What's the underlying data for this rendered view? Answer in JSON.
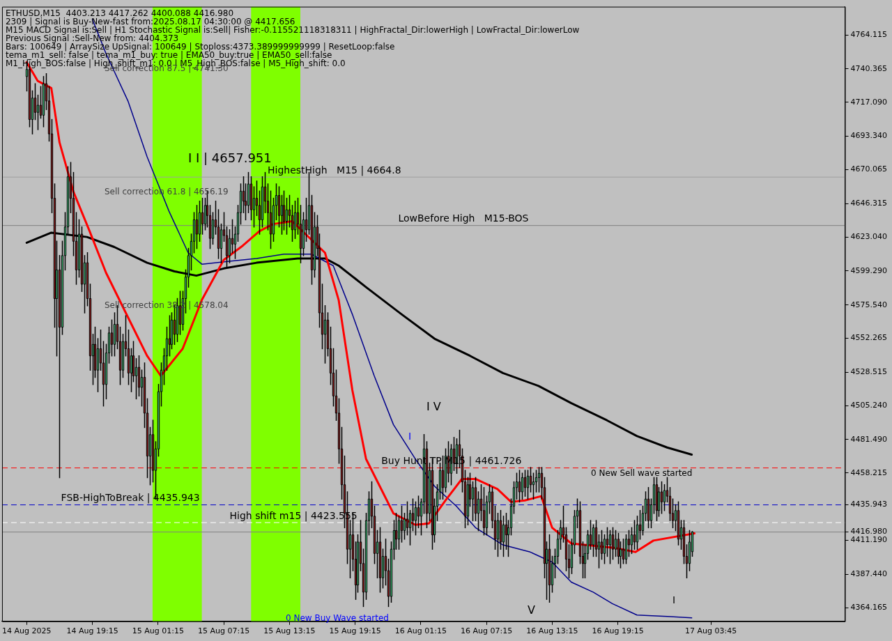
{
  "chart_data": {
    "type": "candlestick",
    "x": [
      "2025-08-14T13:15",
      "2025-08-14T13:30",
      "2025-08-14T13:45",
      "2025-08-14T14:00",
      "2025-08-14T14:15",
      "2025-08-14T14:30",
      "2025-08-14T14:45",
      "2025-08-14T15:00",
      "2025-08-14T15:15",
      "2025-08-14T15:30",
      "2025-08-14T15:45",
      "2025-08-14T16:00",
      "2025-08-14T16:15",
      "2025-08-14T16:30",
      "2025-08-14T16:45",
      "2025-08-14T17:00",
      "2025-08-14T17:15",
      "2025-08-14T17:30",
      "2025-08-14T17:45",
      "2025-08-14T18:00",
      "2025-08-14T18:15",
      "2025-08-14T18:30",
      "2025-08-14T18:45",
      "2025-08-14T19:00",
      "2025-08-14T19:15",
      "2025-08-14T19:30",
      "2025-08-14T19:45",
      "2025-08-14T20:00",
      "2025-08-14T20:15",
      "2025-08-14T20:30",
      "2025-08-14T20:45",
      "2025-08-14T21:00",
      "2025-08-14T21:15",
      "2025-08-14T21:30",
      "2025-08-14T21:45",
      "2025-08-14T22:00",
      "2025-08-14T22:15",
      "2025-08-14T22:30",
      "2025-08-14T22:45",
      "2025-08-14T23:00",
      "2025-08-14T23:15",
      "2025-08-14T23:30",
      "2025-08-14T23:45",
      "2025-08-15T00:00",
      "2025-08-15T00:15",
      "2025-08-15T00:30",
      "2025-08-15T00:45",
      "2025-08-15T01:00",
      "2025-08-15T01:15",
      "2025-08-15T01:30",
      "2025-08-15T01:45",
      "2025-08-15T02:00",
      "2025-08-15T02:15",
      "2025-08-15T02:30",
      "2025-08-15T02:45",
      "2025-08-15T03:00",
      "2025-08-15T03:15",
      "2025-08-15T03:30",
      "2025-08-15T03:45",
      "2025-08-15T04:00",
      "2025-08-15T04:15",
      "2025-08-15T04:30",
      "2025-08-15T04:45",
      "2025-08-15T05:00",
      "2025-08-15T05:15",
      "2025-08-15T05:30",
      "2025-08-15T05:45",
      "2025-08-15T06:00",
      "2025-08-15T06:15",
      "2025-08-15T06:30",
      "2025-08-15T06:45",
      "2025-08-15T07:00",
      "2025-08-15T07:15",
      "2025-08-15T07:30",
      "2025-08-15T07:45",
      "2025-08-15T08:00",
      "2025-08-15T08:15",
      "2025-08-15T08:30",
      "2025-08-15T08:45",
      "2025-08-15T09:00",
      "2025-08-15T09:15",
      "2025-08-15T09:30",
      "2025-08-15T09:45",
      "2025-08-15T10:00",
      "2025-08-15T10:15",
      "2025-08-15T10:30",
      "2025-08-15T10:45",
      "2025-08-15T11:00",
      "2025-08-15T11:15",
      "2025-08-15T11:30",
      "2025-08-15T11:45",
      "2025-08-15T12:00",
      "2025-08-15T12:15",
      "2025-08-15T12:30",
      "2025-08-15T12:45",
      "2025-08-15T13:00",
      "2025-08-15T13:15",
      "2025-08-15T13:30",
      "2025-08-15T13:45",
      "2025-08-15T14:00",
      "2025-08-15T14:15",
      "2025-08-15T14:30",
      "2025-08-15T14:45",
      "2025-08-15T15:00",
      "2025-08-15T15:15",
      "2025-08-15T15:30",
      "2025-08-15T15:45",
      "2025-08-15T16:00",
      "2025-08-15T16:15",
      "2025-08-15T16:30",
      "2025-08-15T16:45",
      "2025-08-15T17:00",
      "2025-08-15T17:15",
      "2025-08-15T17:30",
      "2025-08-15T17:45",
      "2025-08-15T18:00",
      "2025-08-15T18:15",
      "2025-08-15T18:30",
      "2025-08-15T18:45",
      "2025-08-15T19:00",
      "2025-08-15T19:15",
      "2025-08-15T19:30",
      "2025-08-15T19:45",
      "2025-08-15T20:00",
      "2025-08-15T20:15",
      "2025-08-15T20:30",
      "2025-08-15T20:45",
      "2025-08-15T21:00",
      "2025-08-15T21:15",
      "2025-08-15T21:30",
      "2025-08-15T21:45",
      "2025-08-15T22:00",
      "2025-08-15T22:15",
      "2025-08-15T22:30",
      "2025-08-15T22:45",
      "2025-08-15T23:00",
      "2025-08-15T23:15",
      "2025-08-15T23:30",
      "2025-08-15T23:45",
      "2025-08-16T00:00",
      "2025-08-16T00:15",
      "2025-08-16T00:30",
      "2025-08-16T00:45",
      "2025-08-16T01:00",
      "2025-08-16T01:15",
      "2025-08-16T01:30",
      "2025-08-16T01:45",
      "2025-08-16T02:00",
      "2025-08-16T02:15",
      "2025-08-16T02:30",
      "2025-08-16T02:45",
      "2025-08-16T03:00",
      "2025-08-16T03:15",
      "2025-08-16T03:30",
      "2025-08-16T03:45",
      "2025-08-16T04:00",
      "2025-08-16T04:15",
      "2025-08-16T04:30",
      "2025-08-16T04:45",
      "2025-08-16T05:00",
      "2025-08-16T05:15",
      "2025-08-16T05:30",
      "2025-08-16T05:45",
      "2025-08-16T06:00",
      "2025-08-16T06:15",
      "2025-08-16T06:30",
      "2025-08-16T06:45",
      "2025-08-16T07:00",
      "2025-08-16T07:15",
      "2025-08-16T07:30",
      "2025-08-16T07:45",
      "2025-08-16T08:00",
      "2025-08-16T08:15",
      "2025-08-16T08:30",
      "2025-08-16T08:45",
      "2025-08-16T09:00",
      "2025-08-16T09:15",
      "2025-08-16T09:30",
      "2025-08-16T09:45",
      "2025-08-16T10:00",
      "2025-08-16T10:15",
      "2025-08-16T10:30",
      "2025-08-16T10:45",
      "2025-08-16T11:00",
      "2025-08-16T11:15",
      "2025-08-16T11:30",
      "2025-08-16T11:45",
      "2025-08-16T12:00",
      "2025-08-16T12:15",
      "2025-08-16T12:30",
      "2025-08-16T12:45",
      "2025-08-16T13:00",
      "2025-08-16T13:15",
      "2025-08-16T13:30",
      "2025-08-16T13:45",
      "2025-08-16T14:00",
      "2025-08-16T14:15",
      "2025-08-16T14:30",
      "2025-08-16T14:45",
      "2025-08-16T15:00",
      "2025-08-16T15:15",
      "2025-08-16T15:30",
      "2025-08-16T15:45",
      "2025-08-16T16:00",
      "2025-08-16T16:15",
      "2025-08-16T16:30",
      "2025-08-16T16:45",
      "2025-08-16T17:00",
      "2025-08-16T17:15",
      "2025-08-16T17:30",
      "2025-08-16T17:45",
      "2025-08-16T18:00",
      "2025-08-16T18:15",
      "2025-08-16T18:30",
      "2025-08-16T18:45",
      "2025-08-16T19:00",
      "2025-08-16T19:15",
      "2025-08-16T19:30",
      "2025-08-16T19:45",
      "2025-08-16T20:00",
      "2025-08-16T20:15",
      "2025-08-16T20:30",
      "2025-08-16T20:45",
      "2025-08-16T21:00",
      "2025-08-16T21:15",
      "2025-08-16T21:30",
      "2025-08-16T21:45",
      "2025-08-16T22:00",
      "2025-08-16T22:15",
      "2025-08-16T22:30",
      "2025-08-16T22:45",
      "2025-08-16T23:00",
      "2025-08-16T23:15",
      "2025-08-16T23:30",
      "2025-08-16T23:45",
      "2025-08-17T00:00",
      "2025-08-17T00:15",
      "2025-08-17T00:30",
      "2025-08-17T00:45",
      "2025-08-17T01:00",
      "2025-08-17T01:15",
      "2025-08-17T01:30",
      "2025-08-17T01:45",
      "2025-08-17T02:00"
    ],
    "ohlc": [
      [
        4735,
        4745,
        4725,
        4740
      ],
      [
        4740,
        4742,
        4700,
        4705
      ],
      [
        4705,
        4725,
        4695,
        4720
      ],
      [
        4720,
        4730,
        4705,
        4710
      ],
      [
        4710,
        4722,
        4698,
        4715
      ],
      [
        4715,
        4728,
        4706,
        4708
      ],
      [
        4708,
        4735,
        4700,
        4730
      ],
      [
        4730,
        4737,
        4712,
        4718
      ],
      [
        4718,
        4728,
        4690,
        4695
      ],
      [
        4695,
        4705,
        4640,
        4650
      ],
      [
        4650,
        4660,
        4560,
        4580
      ],
      [
        4580,
        4620,
        4540,
        4600
      ],
      [
        4600,
        4610,
        4455,
        4560
      ],
      [
        4560,
        4620,
        4555,
        4610
      ],
      [
        4610,
        4640,
        4600,
        4630
      ],
      [
        4630,
        4672,
        4625,
        4665
      ],
      [
        4665,
        4675,
        4640,
        4650
      ],
      [
        4650,
        4668,
        4610,
        4620
      ],
      [
        4620,
        4640,
        4590,
        4600
      ],
      [
        4600,
        4635,
        4595,
        4625
      ],
      [
        4625,
        4630,
        4585,
        4590
      ],
      [
        4590,
        4610,
        4570,
        4605
      ],
      [
        4605,
        4612,
        4575,
        4580
      ],
      [
        4580,
        4590,
        4530,
        4540
      ],
      [
        4540,
        4555,
        4520,
        4548
      ],
      [
        4548,
        4560,
        4525,
        4530
      ],
      [
        4530,
        4552,
        4515,
        4545
      ],
      [
        4545,
        4558,
        4530,
        4535
      ],
      [
        4535,
        4550,
        4505,
        4520
      ],
      [
        4520,
        4548,
        4510,
        4542
      ],
      [
        4542,
        4560,
        4535,
        4556
      ],
      [
        4556,
        4565,
        4540,
        4548
      ],
      [
        4548,
        4570,
        4540,
        4562
      ],
      [
        4562,
        4575,
        4545,
        4550
      ],
      [
        4550,
        4560,
        4520,
        4530
      ],
      [
        4530,
        4555,
        4525,
        4550
      ],
      [
        4550,
        4568,
        4540,
        4545
      ],
      [
        4545,
        4558,
        4520,
        4528
      ],
      [
        4528,
        4545,
        4515,
        4540
      ],
      [
        4540,
        4550,
        4522,
        4526
      ],
      [
        4526,
        4538,
        4510,
        4532
      ],
      [
        4532,
        4540,
        4512,
        4518
      ],
      [
        4518,
        4530,
        4505,
        4525
      ],
      [
        4525,
        4535,
        4490,
        4500
      ],
      [
        4500,
        4510,
        4455,
        4470
      ],
      [
        4470,
        4490,
        4450,
        4485
      ],
      [
        4485,
        4495,
        4452,
        4460
      ],
      [
        4460,
        4480,
        4440,
        4475
      ],
      [
        4475,
        4520,
        4470,
        4515
      ],
      [
        4515,
        4535,
        4505,
        4530
      ],
      [
        4530,
        4545,
        4520,
        4540
      ],
      [
        4540,
        4560,
        4530,
        4552
      ],
      [
        4552,
        4568,
        4540,
        4548
      ],
      [
        4548,
        4570,
        4545,
        4565
      ],
      [
        4565,
        4575,
        4548,
        4555
      ],
      [
        4555,
        4580,
        4550,
        4575
      ],
      [
        4575,
        4585,
        4555,
        4562
      ],
      [
        4562,
        4585,
        4558,
        4580
      ],
      [
        4580,
        4600,
        4570,
        4595
      ],
      [
        4595,
        4615,
        4588,
        4610
      ],
      [
        4610,
        4625,
        4600,
        4620
      ],
      [
        4620,
        4640,
        4612,
        4635
      ],
      [
        4635,
        4645,
        4615,
        4625
      ],
      [
        4625,
        4648,
        4620,
        4640
      ],
      [
        4640,
        4650,
        4625,
        4632
      ],
      [
        4632,
        4650,
        4628,
        4645
      ],
      [
        4645,
        4655,
        4630,
        4638
      ],
      [
        4638,
        4645,
        4615,
        4622
      ],
      [
        4622,
        4640,
        4618,
        4635
      ],
      [
        4635,
        4648,
        4625,
        4630
      ],
      [
        4630,
        4642,
        4608,
        4615
      ],
      [
        4615,
        4632,
        4605,
        4628
      ],
      [
        4628,
        4640,
        4620,
        4624
      ],
      [
        4624,
        4630,
        4602,
        4610
      ],
      [
        4610,
        4628,
        4605,
        4622
      ],
      [
        4622,
        4635,
        4612,
        4618
      ],
      [
        4618,
        4630,
        4608,
        4625
      ],
      [
        4625,
        4645,
        4620,
        4640
      ],
      [
        4640,
        4660,
        4632,
        4655
      ],
      [
        4655,
        4665,
        4640,
        4648
      ],
      [
        4648,
        4660,
        4635,
        4645
      ],
      [
        4645,
        4668,
        4640,
        4660
      ],
      [
        4660,
        4665,
        4635,
        4642
      ],
      [
        4642,
        4658,
        4630,
        4650
      ],
      [
        4650,
        4662,
        4638,
        4645
      ],
      [
        4645,
        4655,
        4625,
        4635
      ],
      [
        4635,
        4665,
        4630,
        4658
      ],
      [
        4658,
        4668,
        4640,
        4648
      ],
      [
        4648,
        4660,
        4628,
        4640
      ],
      [
        4640,
        4655,
        4615,
        4625
      ],
      [
        4625,
        4650,
        4620,
        4645
      ],
      [
        4645,
        4660,
        4635,
        4652
      ],
      [
        4652,
        4658,
        4630,
        4638
      ],
      [
        4638,
        4652,
        4625,
        4645
      ],
      [
        4645,
        4655,
        4628,
        4634
      ],
      [
        4634,
        4650,
        4625,
        4642
      ],
      [
        4642,
        4652,
        4630,
        4638
      ],
      [
        4638,
        4645,
        4620,
        4628
      ],
      [
        4628,
        4648,
        4622,
        4640
      ],
      [
        4640,
        4650,
        4625,
        4632
      ],
      [
        4632,
        4645,
        4605,
        4615
      ],
      [
        4615,
        4640,
        4610,
        4635
      ],
      [
        4635,
        4650,
        4620,
        4628
      ],
      [
        4628,
        4668,
        4625,
        4645
      ],
      [
        4645,
        4652,
        4590,
        4600
      ],
      [
        4600,
        4640,
        4595,
        4630
      ],
      [
        4630,
        4638,
        4610,
        4615
      ],
      [
        4615,
        4625,
        4560,
        4570
      ],
      [
        4570,
        4590,
        4545,
        4555
      ],
      [
        4555,
        4575,
        4535,
        4565
      ],
      [
        4565,
        4570,
        4540,
        4545
      ],
      [
        4545,
        4560,
        4520,
        4528
      ],
      [
        4528,
        4545,
        4505,
        4512
      ],
      [
        4512,
        4530,
        4495,
        4500
      ],
      [
        4500,
        4510,
        4465,
        4475
      ],
      [
        4475,
        4490,
        4440,
        4450
      ],
      [
        4450,
        4470,
        4420,
        4430
      ],
      [
        4430,
        4445,
        4395,
        4405
      ],
      [
        4405,
        4425,
        4385,
        4415
      ],
      [
        4415,
        4430,
        4390,
        4398
      ],
      [
        4398,
        4410,
        4370,
        4380
      ],
      [
        4380,
        4415,
        4375,
        4410
      ],
      [
        4410,
        4425,
        4390,
        4395
      ],
      [
        4395,
        4405,
        4365,
        4375
      ],
      [
        4375,
        4430,
        4370,
        4425
      ],
      [
        4425,
        4445,
        4415,
        4440
      ],
      [
        4440,
        4452,
        4420,
        4428
      ],
      [
        4428,
        4435,
        4395,
        4402
      ],
      [
        4402,
        4418,
        4385,
        4410
      ],
      [
        4410,
        4420,
        4375,
        4385
      ],
      [
        4385,
        4405,
        4378,
        4400
      ],
      [
        4400,
        4412,
        4380,
        4390
      ],
      [
        4390,
        4398,
        4365,
        4372
      ],
      [
        4372,
        4410,
        4368,
        4405
      ],
      [
        4405,
        4425,
        4398,
        4418
      ],
      [
        4418,
        4430,
        4405,
        4412
      ],
      [
        4412,
        4428,
        4405,
        4425
      ],
      [
        4425,
        4435,
        4410,
        4418
      ],
      [
        4418,
        4430,
        4412,
        4426
      ],
      [
        4426,
        4438,
        4415,
        4420
      ],
      [
        4420,
        4432,
        4408,
        4430
      ],
      [
        4430,
        4440,
        4418,
        4425
      ],
      [
        4425,
        4438,
        4415,
        4434
      ],
      [
        4434,
        4442,
        4420,
        4428
      ],
      [
        4428,
        4440,
        4415,
        4438
      ],
      [
        4438,
        4485,
        4430,
        4475
      ],
      [
        4475,
        4480,
        4420,
        4430
      ],
      [
        4430,
        4465,
        4425,
        4460
      ],
      [
        4460,
        4468,
        4405,
        4415
      ],
      [
        4415,
        4440,
        4410,
        4435
      ],
      [
        4435,
        4450,
        4425,
        4445
      ],
      [
        4445,
        4465,
        4440,
        4460
      ],
      [
        4460,
        4470,
        4440,
        4448
      ],
      [
        4448,
        4475,
        4445,
        4470
      ],
      [
        4470,
        4480,
        4452,
        4458
      ],
      [
        4458,
        4478,
        4450,
        4475
      ],
      [
        4475,
        4483,
        4460,
        4465
      ],
      [
        4465,
        4482,
        4458,
        4478
      ],
      [
        4478,
        4488,
        4462,
        4470
      ],
      [
        4470,
        4475,
        4445,
        4452
      ],
      [
        4452,
        4460,
        4420,
        4428
      ],
      [
        4428,
        4455,
        4422,
        4450
      ],
      [
        4450,
        4458,
        4435,
        4440
      ],
      [
        4440,
        4452,
        4425,
        4448
      ],
      [
        4448,
        4455,
        4425,
        4430
      ],
      [
        4430,
        4445,
        4418,
        4440
      ],
      [
        4440,
        4450,
        4425,
        4432
      ],
      [
        4432,
        4448,
        4415,
        4420
      ],
      [
        4420,
        4442,
        4415,
        4438
      ],
      [
        4438,
        4450,
        4430,
        4445
      ],
      [
        4445,
        4448,
        4420,
        4425
      ],
      [
        4425,
        4435,
        4405,
        4412
      ],
      [
        4412,
        4430,
        4400,
        4425
      ],
      [
        4425,
        4432,
        4405,
        4410
      ],
      [
        4410,
        4428,
        4400,
        4422
      ],
      [
        4422,
        4430,
        4405,
        4415
      ],
      [
        4415,
        4425,
        4400,
        4420
      ],
      [
        4420,
        4440,
        4415,
        4435
      ],
      [
        4435,
        4452,
        4430,
        4448
      ],
      [
        4448,
        4458,
        4440,
        4452
      ],
      [
        4452,
        4460,
        4438,
        4445
      ],
      [
        4445,
        4458,
        4440,
        4455
      ],
      [
        4455,
        4460,
        4442,
        4448
      ],
      [
        4448,
        4460,
        4440,
        4456
      ],
      [
        4456,
        4462,
        4445,
        4450
      ],
      [
        4450,
        4458,
        4440,
        4452
      ],
      [
        4452,
        4460,
        4445,
        4455
      ],
      [
        4455,
        4462,
        4445,
        4458
      ],
      [
        4458,
        4462,
        4440,
        4448
      ],
      [
        4448,
        4455,
        4385,
        4395
      ],
      [
        4395,
        4410,
        4370,
        4405
      ],
      [
        4405,
        4415,
        4368,
        4380
      ],
      [
        4380,
        4400,
        4375,
        4395
      ],
      [
        4395,
        4405,
        4385,
        4400
      ],
      [
        4400,
        4418,
        4395,
        4412
      ],
      [
        4412,
        4425,
        4405,
        4420
      ],
      [
        4420,
        4435,
        4410,
        4415
      ],
      [
        4415,
        4420,
        4390,
        4398
      ],
      [
        4398,
        4408,
        4385,
        4392
      ],
      [
        4392,
        4412,
        4388,
        4408
      ],
      [
        4408,
        4432,
        4402,
        4428
      ],
      [
        4428,
        4440,
        4420,
        4432
      ],
      [
        4432,
        4438,
        4395,
        4400
      ],
      [
        4400,
        4410,
        4385,
        4395
      ],
      [
        4395,
        4408,
        4385,
        4402
      ],
      [
        4402,
        4418,
        4398,
        4415
      ],
      [
        4415,
        4425,
        4405,
        4408
      ],
      [
        4408,
        4422,
        4400,
        4420
      ],
      [
        4420,
        4425,
        4400,
        4405
      ],
      [
        4405,
        4415,
        4392,
        4410
      ],
      [
        4410,
        4418,
        4398,
        4402
      ],
      [
        4402,
        4415,
        4395,
        4412
      ],
      [
        4412,
        4420,
        4400,
        4408
      ],
      [
        4408,
        4418,
        4395,
        4415
      ],
      [
        4415,
        4420,
        4398,
        4405
      ],
      [
        4405,
        4418,
        4400,
        4412
      ],
      [
        4412,
        4416,
        4395,
        4400
      ],
      [
        4400,
        4410,
        4392,
        4405
      ],
      [
        4405,
        4412,
        4395,
        4398
      ],
      [
        4398,
        4415,
        4395,
        4412
      ],
      [
        4412,
        4418,
        4400,
        4408
      ],
      [
        4408,
        4420,
        4402,
        4415
      ],
      [
        4415,
        4425,
        4405,
        4410
      ],
      [
        4410,
        4428,
        4405,
        4422
      ],
      [
        4422,
        4432,
        4412,
        4418
      ],
      [
        4418,
        4435,
        4415,
        4430
      ],
      [
        4430,
        4445,
        4425,
        4440
      ],
      [
        4440,
        4448,
        4420,
        4425
      ],
      [
        4425,
        4440,
        4420,
        4436
      ],
      [
        4436,
        4455,
        4430,
        4450
      ],
      [
        4450,
        4455,
        4425,
        4432
      ],
      [
        4432,
        4448,
        4428,
        4445
      ],
      [
        4445,
        4452,
        4430,
        4438
      ],
      [
        4438,
        4450,
        4432,
        4446
      ],
      [
        4446,
        4455,
        4438,
        4442
      ],
      [
        4442,
        4448,
        4425,
        4430
      ],
      [
        4430,
        4440,
        4420,
        4425
      ],
      [
        4425,
        4436,
        4418,
        4432
      ],
      [
        4432,
        4438,
        4408,
        4412
      ],
      [
        4412,
        4425,
        4405,
        4420
      ],
      [
        4420,
        4425,
        4395,
        4400
      ],
      [
        4400,
        4408,
        4385,
        4395
      ],
      [
        4395,
        4418,
        4390,
        4410
      ],
      [
        4403.213,
        4417.262,
        4400.088,
        4416.98
      ]
    ],
    "series": [
      {
        "type": "line",
        "color": "#ff0000",
        "x": [
          "2025-08-14T13:15",
          "2025-08-14T14:15",
          "2025-08-14T15:30",
          "2025-08-14T16:15",
          "2025-08-14T17:30",
          "2025-08-14T19:00",
          "2025-08-14T20:30",
          "2025-08-14T22:30",
          "2025-08-15T00:15",
          "2025-08-15T01:30",
          "2025-08-15T03:30",
          "2025-08-15T05:15",
          "2025-08-15T07:15",
          "2025-08-15T09:00",
          "2025-08-15T10:30",
          "2025-08-15T11:45",
          "2025-08-15T13:30",
          "2025-08-15T16:30",
          "2025-08-15T17:45",
          "2025-08-15T19:00",
          "2025-08-15T20:15",
          "2025-08-15T21:30",
          "2025-08-15T22:45",
          "2025-08-16T00:45",
          "2025-08-16T02:00",
          "2025-08-16T03:30",
          "2025-08-16T05:00",
          "2025-08-16T06:15",
          "2025-08-16T08:15",
          "2025-08-16T09:30",
          "2025-08-16T10:45",
          "2025-08-16T12:15",
          "2025-08-16T13:15",
          "2025-08-16T15:00",
          "2025-08-16T18:52",
          "2025-08-16T20:52",
          "2025-08-16T22:30",
          "2025-08-17T02:15"
        ],
        "values": [
          4745,
          4732,
          4727,
          4689,
          4655,
          4627,
          4598,
          4567,
          4540,
          4526,
          4545,
          4579,
          4607,
          4617,
          4627,
          4632,
          4634,
          4612,
          4579,
          4516,
          4468,
          4449,
          4430,
          4422,
          4423,
          4439,
          4454,
          4454,
          4447,
          4438,
          4439,
          4442,
          4420,
          4409,
          4406,
          4403,
          4411,
          4416
        ]
      },
      {
        "type": "line",
        "color": "#00008b",
        "x": [
          "2025-08-14T19:15",
          "2025-08-14T20:30",
          "2025-08-14T22:30",
          "2025-08-15T00:15",
          "2025-08-15T02:15",
          "2025-08-15T04:00",
          "2025-08-15T05:15",
          "2025-08-15T07:45",
          "2025-08-15T10:15",
          "2025-08-15T12:45",
          "2025-08-15T15:15",
          "2025-08-15T17:15",
          "2025-08-15T19:00",
          "2025-08-15T21:00",
          "2025-08-15T22:45",
          "2025-08-16T00:45",
          "2025-08-16T02:30",
          "2025-08-16T04:30",
          "2025-08-16T06:15",
          "2025-08-16T08:45",
          "2025-08-16T11:15",
          "2025-08-16T13:15",
          "2025-08-16T15:00",
          "2025-08-16T17:00",
          "2025-08-16T18:45",
          "2025-08-16T21:00",
          "2025-08-16T23:45",
          "2025-08-17T02:00"
        ],
        "values": [
          4775,
          4751,
          4718,
          4679,
          4641,
          4612,
          4604,
          4606,
          4608,
          4611,
          4611,
          4603,
          4569,
          4526,
          4492,
          4468,
          4449,
          4435,
          4420,
          4408,
          4403,
          4396,
          4382,
          4375,
          4367,
          4359,
          4358,
          4357
        ]
      },
      {
        "type": "line",
        "color": "#000000",
        "x": [
          "2025-08-14T13:15",
          "2025-08-14T15:30",
          "2025-08-14T18:45",
          "2025-08-14T21:15",
          "2025-08-15T00:15",
          "2025-08-15T02:45",
          "2025-08-15T04:45",
          "2025-08-15T07:15",
          "2025-08-15T10:15",
          "2025-08-15T14:00",
          "2025-08-15T16:30",
          "2025-08-15T17:45",
          "2025-08-15T20:15",
          "2025-08-15T23:30",
          "2025-08-16T02:30",
          "2025-08-16T05:45",
          "2025-08-16T08:45",
          "2025-08-16T12:00",
          "2025-08-16T15:00",
          "2025-08-16T18:15",
          "2025-08-16T21:00",
          "2025-08-16T23:45",
          "2025-08-17T02:00"
        ],
        "values": [
          4619,
          4626,
          4623,
          4616,
          4605,
          4599,
          4596,
          4601,
          4605,
          4608,
          4608,
          4603,
          4588,
          4569,
          4552,
          4540,
          4528,
          4519,
          4507,
          4495,
          4484,
          4476,
          4471
        ]
      }
    ],
    "xlim": [
      "2025-08-14T11:00",
      "2025-08-17T16:00"
    ],
    "xticks": [
      {
        "value": "2025-08-14T13:15",
        "label": "14 Aug 2025"
      },
      {
        "value": "2025-08-14T19:15",
        "label": "14 Aug 19:15"
      },
      {
        "value": "2025-08-15T01:15",
        "label": "15 Aug 01:15"
      },
      {
        "value": "2025-08-15T07:15",
        "label": "15 Aug 07:15"
      },
      {
        "value": "2025-08-15T13:15",
        "label": "15 Aug 13:15"
      },
      {
        "value": "2025-08-15T19:15",
        "label": "15 Aug 19:15"
      },
      {
        "value": "2025-08-16T01:15",
        "label": "16 Aug 01:15"
      },
      {
        "value": "2025-08-16T07:15",
        "label": "16 Aug 07:15"
      },
      {
        "value": "2025-08-16T13:15",
        "label": "16 Aug 13:15"
      },
      {
        "value": "2025-08-16T19:15",
        "label": "16 Aug 19:15"
      },
      {
        "value": "2025-08-17T03:45",
        "label": "17 Aug 03:45"
      }
    ],
    "ylim": [
      4354.6,
      4783.8
    ],
    "yticks": [
      4364.165,
      {
        "value": 4387.44,
        "label": "4387.440"
      },
      {
        "value": 4411.19,
        "label": "4411.190"
      },
      {
        "value": 4416.98,
        "label": "4416.980"
      },
      4435.943,
      4458.215,
      {
        "value": 4481.49,
        "label": "4481.490"
      },
      {
        "value": 4505.24,
        "label": "4505.240"
      },
      4528.515,
      4552.265,
      {
        "value": 4575.54,
        "label": "4575.540"
      },
      {
        "value": 4599.29,
        "label": "4599.290"
      },
      {
        "value": 4623.04,
        "label": "4623.040"
      },
      4646.315,
      4670.065,
      {
        "value": 4693.34,
        "label": "4693.340"
      },
      {
        "value": 4717.09,
        "label": "4717.090"
      },
      4740.365,
      4764.115
    ],
    "grid": false,
    "bands": [
      {
        "axis": "x",
        "from": "2025-08-15T00:45",
        "to": "2025-08-15T05:15",
        "color": "#7fff00"
      },
      {
        "axis": "x",
        "from": "2025-08-15T09:45",
        "to": "2025-08-15T14:15",
        "color": "#7fff00"
      }
    ],
    "ref_lines": [
      {
        "axis": "y",
        "value": 4435.943,
        "label": "FSB-HighToBreak | 4435.943",
        "color": "#0000c8",
        "line_style": "dashed"
      },
      {
        "axis": "y",
        "value": 4461.726,
        "label": "Buy Hunt TP M15 | 4461.726",
        "color": "#ff0000",
        "line_style": "dashed"
      },
      {
        "axis": "y",
        "value": 4664.8,
        "label": "HighestHigh   M15 | 4664.8",
        "color": "#a0a0a0",
        "line_style": "solid"
      },
      {
        "axis": "y",
        "value": 4631,
        "label": "LowBefore High   M15-BOS",
        "color": "#808080",
        "line_style": "solid"
      },
      {
        "axis": "y",
        "value": 4423.555,
        "label": "High shift m15 | 4423.555",
        "color": "#ffffff",
        "line_style": "dashed"
      },
      {
        "axis": "y",
        "value": 4416.98,
        "label": null,
        "color": "#808080",
        "line_style": "solid"
      }
    ],
    "annotations": [
      "ETHUSD,M15  4403.213 4417.262 4400.088 4416.980",
      "2309 | Signal is Buy-New-fast from:2025.08.17 04:30:00 @ 4417.656",
      "M15 MACD Signal is:Sell | H1 Stochastic Signal is:Sell| Fisher:-0.115521118318311 | HighFractal_Dir:lowerHigh | LowFractal_Dir:lowerLow",
      "Previous Signal :Sell-New from: 4404.373",
      "Bars: 100649 | ArraySize UpSignal: 100649 | Stoploss:4373.389999999999 | ResetLoop:false",
      "tema_m1_sell: false | tema_m1_buy: true | EMA50_buy:true | EMA50_sell:false",
      "M1_High_BOS:false | High_shift_m1: 0.0 | M5_High_BOS:false | M5_High_shift: 0.0",
      "Sell correction 87.5 | 4741.30",
      "Sell correction 61.8 | 4656.19",
      "Sell correction 38.2 | 4578.04",
      "I I | 4657.951",
      "I V",
      "I",
      "0 New Sell wave started",
      "0 New Buy Wave started",
      "V",
      "I"
    ]
  }
}
